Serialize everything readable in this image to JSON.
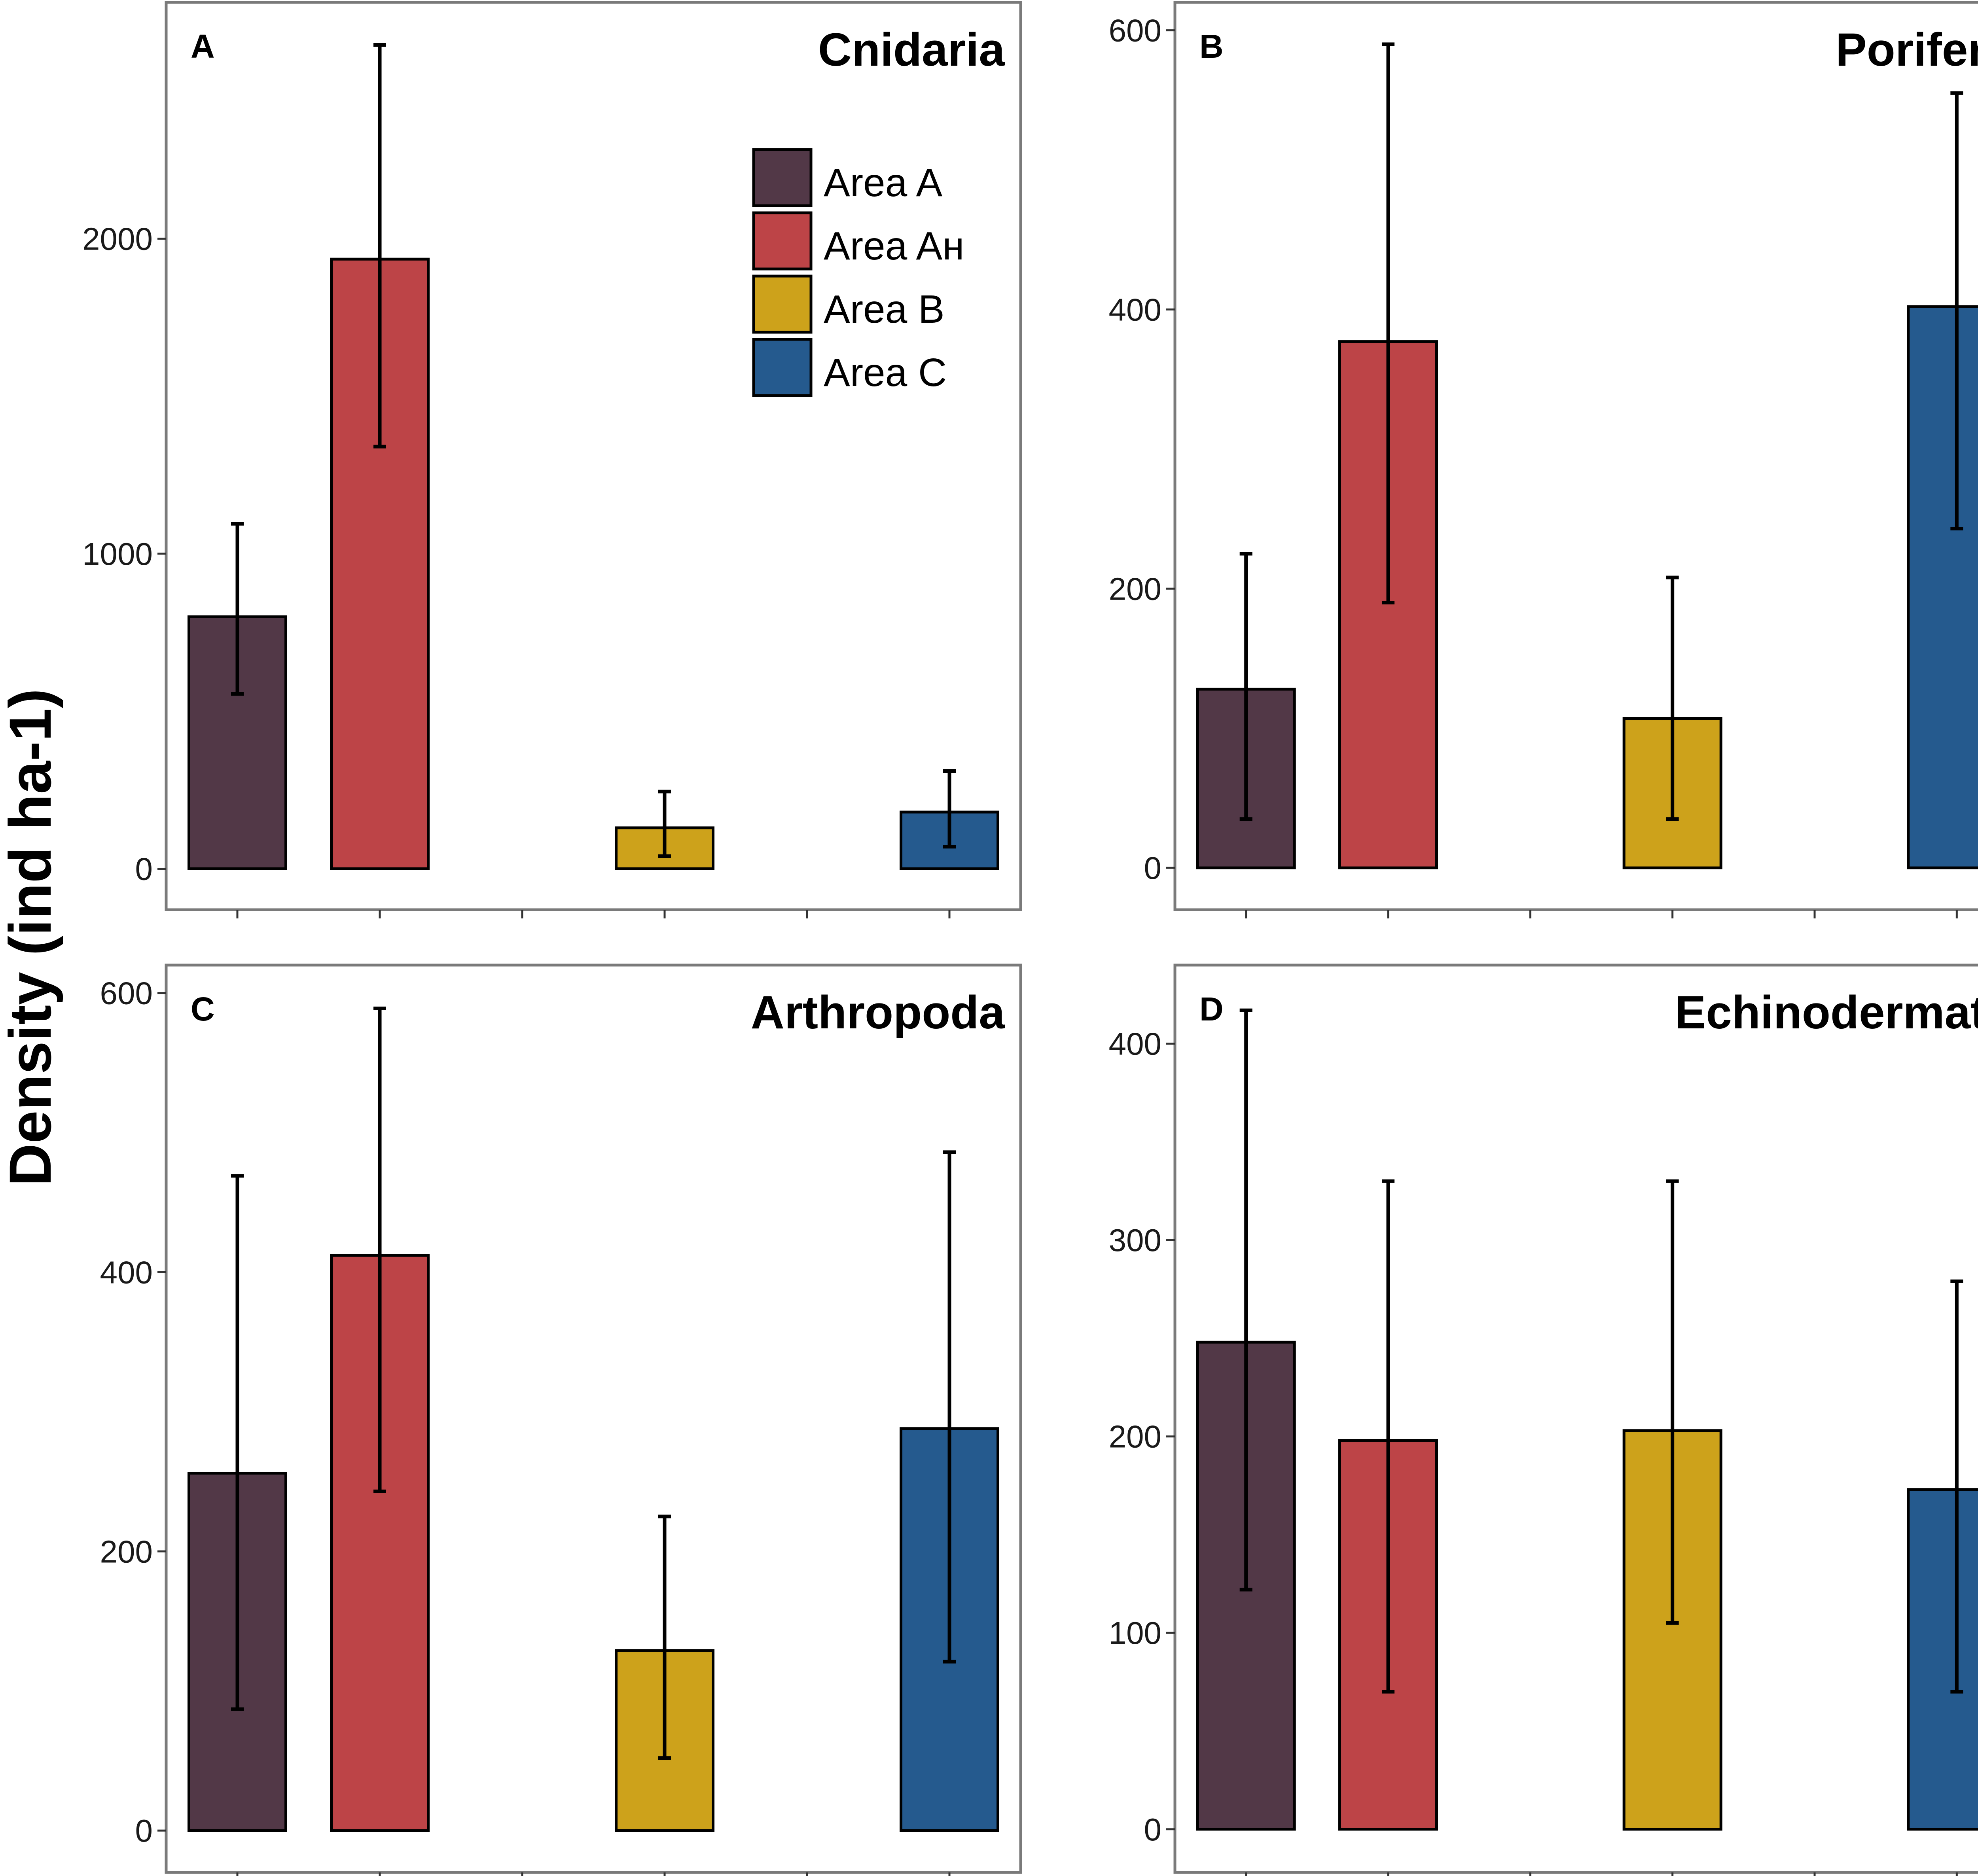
{
  "figure": {
    "ylabel": "Density (ind ha-1)"
  },
  "legend": {
    "entries": [
      {
        "label": "Area A",
        "color": "#523847"
      },
      {
        "label": "Area Aн",
        "color": "#bd4447"
      },
      {
        "label": "Area B",
        "color": "#cda21b"
      },
      {
        "label": "Area C",
        "color": "#255a8e"
      }
    ]
  },
  "chart_data": [
    {
      "type": "bar",
      "panel": "A",
      "title": "Cnidaria",
      "categories": [
        "Area A",
        "Area Aн",
        "Area B",
        "Area C"
      ],
      "slots": [
        0,
        1,
        3,
        5
      ],
      "values": [
        800,
        1935,
        130,
        180
      ],
      "err_low": [
        555,
        1340,
        40,
        70
      ],
      "err_high": [
        1095,
        2615,
        245,
        310
      ],
      "ylim": [
        -130,
        2750
      ],
      "yticks": [
        0,
        1000,
        2000
      ],
      "ytick_labels": [
        "0",
        "1000",
        "2000"
      ]
    },
    {
      "type": "bar",
      "panel": "B",
      "title": "Porifera",
      "categories": [
        "Area A",
        "Area Aн",
        "Area B",
        "Area C"
      ],
      "slots": [
        0,
        1,
        3,
        5
      ],
      "values": [
        128,
        377,
        107,
        402
      ],
      "err_low": [
        35,
        190,
        35,
        243
      ],
      "err_high": [
        225,
        590,
        208,
        555
      ],
      "ylim": [
        -30,
        620
      ],
      "yticks": [
        0,
        200,
        400,
        600
      ],
      "ytick_labels": [
        "0",
        "200",
        "400",
        "600"
      ]
    },
    {
      "type": "bar",
      "panel": "C",
      "title": "Arthropoda",
      "categories": [
        "Area A",
        "Area Aн",
        "Area B",
        "Area C"
      ],
      "slots": [
        0,
        1,
        3,
        5
      ],
      "values": [
        256,
        412,
        129,
        288
      ],
      "err_low": [
        87,
        243,
        52,
        121
      ],
      "err_high": [
        469,
        589,
        225,
        486
      ],
      "ylim": [
        -30,
        620
      ],
      "yticks": [
        0,
        200,
        400,
        600
      ],
      "ytick_labels": [
        "0",
        "200",
        "400",
        "600"
      ]
    },
    {
      "type": "bar",
      "panel": "D",
      "title": "Echinodermata",
      "categories": [
        "Area A",
        "Area Aн",
        "Area B",
        "Area C"
      ],
      "slots": [
        0,
        1,
        3,
        5
      ],
      "values": [
        248,
        198,
        203,
        173
      ],
      "err_low": [
        122,
        70,
        105,
        70
      ],
      "err_high": [
        417,
        330,
        330,
        279
      ],
      "ylim": [
        -22,
        440
      ],
      "yticks": [
        0,
        100,
        200,
        300,
        400
      ],
      "ytick_labels": [
        "0",
        "100",
        "200",
        "300",
        "400"
      ]
    }
  ]
}
